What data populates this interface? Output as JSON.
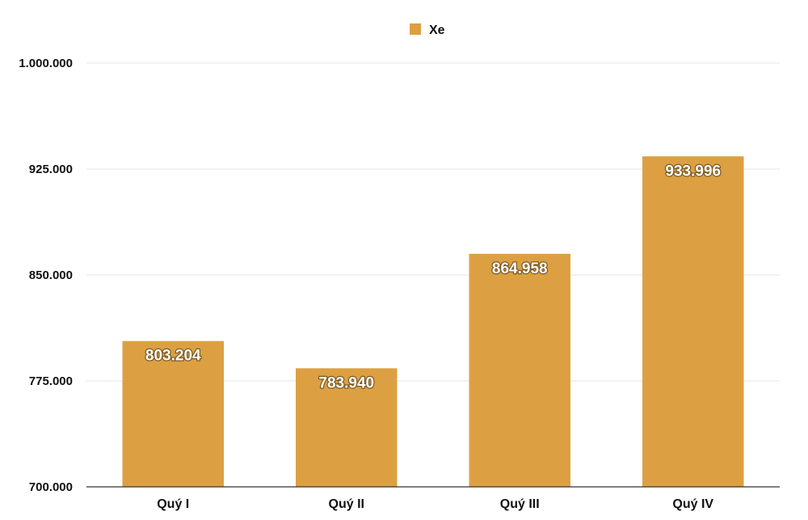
{
  "chart_data": {
    "type": "bar",
    "categories": [
      "Quý I",
      "Quý II",
      "Quý III",
      "Quý IV"
    ],
    "series": [
      {
        "name": "Xe",
        "values": [
          803204,
          783940,
          864958,
          933996
        ],
        "value_labels": [
          "803.204",
          "783.940",
          "864.958",
          "933.996"
        ],
        "color": "#dca043"
      }
    ],
    "ylim": [
      700000,
      1000000
    ],
    "yticks": [
      700000,
      775000,
      850000,
      925000,
      1000000
    ],
    "ytick_labels": [
      "700.000",
      "775.000",
      "850.000",
      "925.000",
      "1.000.000"
    ],
    "legend_position": "top-center",
    "grid": true,
    "title": "",
    "xlabel": "",
    "ylabel": ""
  },
  "colors": {
    "bar": "#dca043",
    "grid": "#e6e6e6",
    "axis": "#333333"
  }
}
